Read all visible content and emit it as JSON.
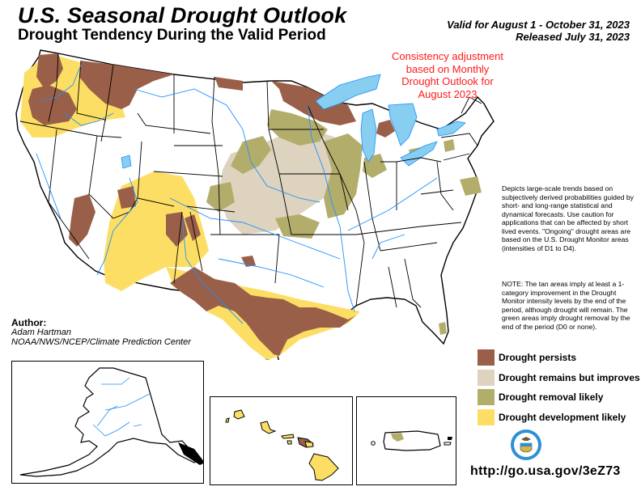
{
  "header": {
    "title": "U.S. Seasonal Drought Outlook",
    "subtitle": "Drought Tendency During the Valid Period",
    "valid_period": "Valid for August 1 - October 31, 2023",
    "released": "Released July 31, 2023"
  },
  "annotation": {
    "lines": [
      "Consistency adjustment",
      "based on Monthly",
      "Drought Outlook for",
      "August 2023"
    ],
    "color": "#ff1a1a"
  },
  "description": {
    "text": "Depicts large-scale trends based on subjectively derived probabilities guided by short- and long-range statistical and dynamical forecasts. Use caution for applications that can be affected by short lived events. \"Ongoing\" drought areas are based on the U.S. Drought Monitor areas (intensities of D1 to D4).",
    "note": "NOTE: The tan areas imply at least a 1-category improvement in the Drought Monitor intensity levels by the end of the period, although drought will remain. The green areas imply drought removal by the end of the period (D0 or none)."
  },
  "legend": [
    {
      "label": "Drought persists",
      "color": "#9a5f48"
    },
    {
      "label": "Drought remains but improves",
      "color": "#ddd3bf"
    },
    {
      "label": "Drought removal likely",
      "color": "#b3ad6c"
    },
    {
      "label": "Drought development likely",
      "color": "#fdde65"
    }
  ],
  "author": {
    "heading": "Author:",
    "name": "Adam Hartman",
    "org": "NOAA/NWS/NCEP/Climate Prediction Center"
  },
  "insets": [
    "Alaska",
    "Hawaii",
    "Puerto Rico"
  ],
  "footer": {
    "url": "http://go.usa.gov/3eZ73"
  },
  "colors": {
    "water": "#87cef0",
    "river": "#1e90ff",
    "border": "#000000"
  }
}
